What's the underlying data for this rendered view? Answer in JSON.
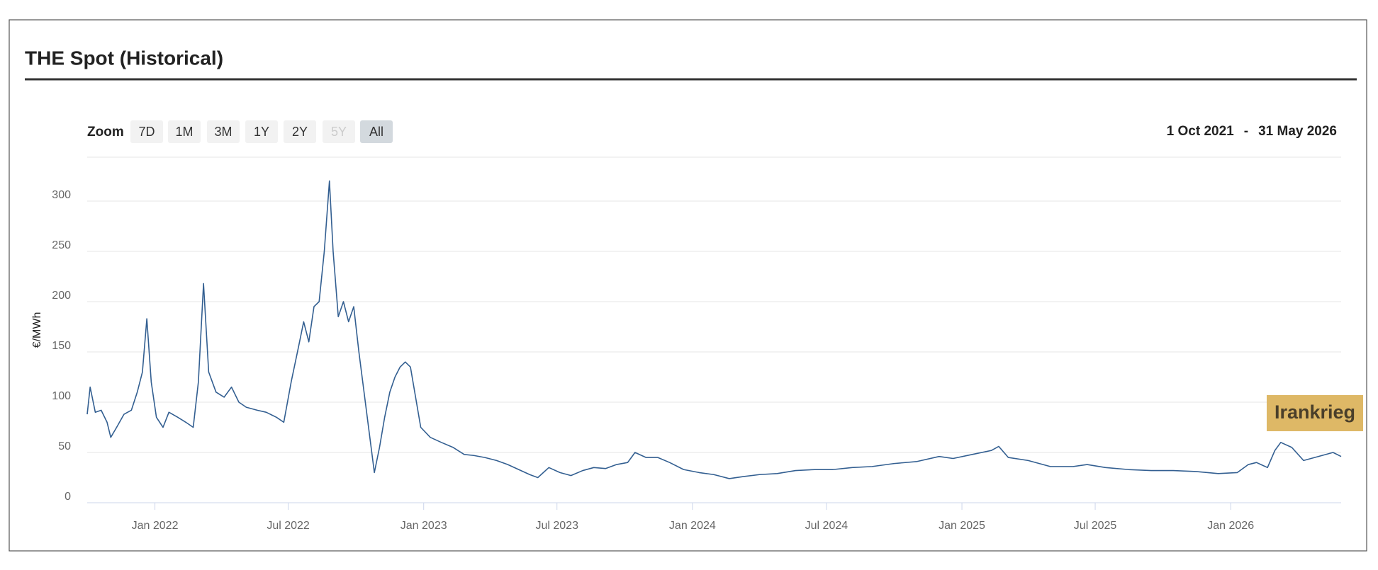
{
  "chart_data": {
    "type": "line",
    "title": "THE Spot (Historical)",
    "y_label": "€/MWh",
    "range_selector": {
      "label": "Zoom",
      "buttons": [
        "7D",
        "1M",
        "3M",
        "1Y",
        "2Y",
        "5Y",
        "All"
      ],
      "selected": 6,
      "disabled": [
        5
      ]
    },
    "range": {
      "from": "1 Oct 2021",
      "separator": "-",
      "to": "31 May 2026"
    },
    "annotation": "Irankrieg",
    "color": "#335f91",
    "grid": true,
    "xlim": [
      "2021-10-01",
      "2026-05-31"
    ],
    "xticks": [
      {
        "value": "2022-01-01",
        "label": "Jan 2022"
      },
      {
        "value": "2022-07-01",
        "label": "Jul 2022"
      },
      {
        "value": "2023-01-01",
        "label": "Jan 2023"
      },
      {
        "value": "2023-07-01",
        "label": "Jul 2023"
      },
      {
        "value": "2024-01-01",
        "label": "Jan 2024"
      },
      {
        "value": "2024-07-01",
        "label": "Jul 2024"
      },
      {
        "value": "2025-01-01",
        "label": "Jan 2025"
      },
      {
        "value": "2025-07-01",
        "label": "Jul 2025"
      },
      {
        "value": "2026-01-01",
        "label": "Jan 2026"
      }
    ],
    "ylim": [
      0,
      350
    ],
    "yticks": [
      0,
      50,
      100,
      150,
      200,
      250,
      300
    ],
    "x": [
      "2021-10-01",
      "2021-10-05",
      "2021-10-12",
      "2021-10-20",
      "2021-10-28",
      "2021-11-02",
      "2021-11-10",
      "2021-11-20",
      "2021-11-30",
      "2021-12-08",
      "2021-12-15",
      "2021-12-21",
      "2021-12-27",
      "2022-01-03",
      "2022-01-12",
      "2022-01-20",
      "2022-02-01",
      "2022-02-12",
      "2022-02-22",
      "2022-03-01",
      "2022-03-08",
      "2022-03-15",
      "2022-03-25",
      "2022-04-05",
      "2022-04-15",
      "2022-04-25",
      "2022-05-05",
      "2022-05-20",
      "2022-06-01",
      "2022-06-15",
      "2022-06-25",
      "2022-07-05",
      "2022-07-15",
      "2022-07-22",
      "2022-07-29",
      "2022-08-05",
      "2022-08-12",
      "2022-08-19",
      "2022-08-26",
      "2022-08-31",
      "2022-09-07",
      "2022-09-14",
      "2022-09-21",
      "2022-09-28",
      "2022-10-05",
      "2022-10-12",
      "2022-10-19",
      "2022-10-26",
      "2022-11-02",
      "2022-11-09",
      "2022-11-16",
      "2022-11-23",
      "2022-11-30",
      "2022-12-07",
      "2022-12-14",
      "2022-12-21",
      "2022-12-28",
      "2023-01-10",
      "2023-01-25",
      "2023-02-10",
      "2023-02-25",
      "2023-03-10",
      "2023-03-25",
      "2023-04-10",
      "2023-04-25",
      "2023-05-10",
      "2023-05-25",
      "2023-06-05",
      "2023-06-20",
      "2023-07-05",
      "2023-07-20",
      "2023-08-05",
      "2023-08-20",
      "2023-09-05",
      "2023-09-20",
      "2023-10-05",
      "2023-10-15",
      "2023-10-30",
      "2023-11-15",
      "2023-12-01",
      "2023-12-20",
      "2024-01-10",
      "2024-01-30",
      "2024-02-20",
      "2024-03-10",
      "2024-04-01",
      "2024-04-25",
      "2024-05-20",
      "2024-06-15",
      "2024-07-10",
      "2024-08-05",
      "2024-09-01",
      "2024-10-01",
      "2024-11-01",
      "2024-12-01",
      "2024-12-20",
      "2025-01-15",
      "2025-02-10",
      "2025-02-20",
      "2025-03-05",
      "2025-04-01",
      "2025-05-01",
      "2025-06-01",
      "2025-06-20",
      "2025-07-15",
      "2025-08-15",
      "2025-09-15",
      "2025-10-15",
      "2025-11-15",
      "2025-12-15",
      "2026-01-10",
      "2026-01-25",
      "2026-02-05",
      "2026-02-20",
      "2026-03-02",
      "2026-03-10",
      "2026-03-25",
      "2026-04-10",
      "2026-04-25",
      "2026-05-10",
      "2026-05-20",
      "2026-05-31"
    ],
    "values": [
      88,
      115,
      90,
      92,
      80,
      65,
      75,
      88,
      92,
      110,
      130,
      183,
      120,
      85,
      75,
      90,
      85,
      80,
      75,
      120,
      218,
      130,
      110,
      105,
      115,
      100,
      95,
      92,
      90,
      85,
      80,
      120,
      155,
      180,
      160,
      195,
      200,
      250,
      320,
      250,
      185,
      200,
      180,
      195,
      150,
      110,
      70,
      30,
      55,
      85,
      110,
      125,
      135,
      140,
      135,
      105,
      75,
      65,
      60,
      55,
      48,
      47,
      45,
      42,
      38,
      33,
      28,
      25,
      35,
      30,
      27,
      32,
      35,
      34,
      38,
      40,
      50,
      45,
      45,
      40,
      33,
      30,
      28,
      24,
      26,
      28,
      29,
      32,
      33,
      33,
      35,
      36,
      39,
      41,
      46,
      44,
      48,
      52,
      56,
      45,
      42,
      36,
      36,
      38,
      35,
      33,
      32,
      32,
      31,
      29,
      30,
      38,
      40,
      35,
      52,
      60,
      55,
      42,
      45,
      48,
      50,
      46
    ]
  }
}
